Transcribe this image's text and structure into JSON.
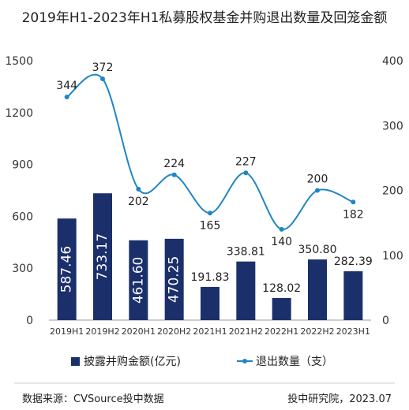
{
  "title": "2019年H1-2023年H1私募股权基金并购退出数量及回笼金额",
  "chart_data": {
    "type": "bar",
    "categories": [
      "2019H1",
      "2019H2",
      "2020H1",
      "2020H2",
      "2021H1",
      "2021H2",
      "2022H1",
      "2022H2",
      "2023H1"
    ],
    "series": [
      {
        "name": "披露并购金额(亿元)",
        "type": "bar",
        "axis": "left",
        "values": [
          587.46,
          733.17,
          461.6,
          470.25,
          191.83,
          338.81,
          128.02,
          350.8,
          282.39
        ],
        "labels": [
          "587.46",
          "733.17",
          "461.60",
          "470.25",
          "191.83",
          "338.81",
          "128.02",
          "350.80",
          "282.39"
        ]
      },
      {
        "name": "退出数量（支）",
        "type": "line",
        "axis": "right",
        "values": [
          344,
          372,
          202,
          224,
          165,
          227,
          140,
          200,
          182
        ],
        "labels": [
          "344",
          "372",
          "202",
          "224",
          "165",
          "227",
          "140",
          "200",
          "182"
        ]
      }
    ],
    "y_left": {
      "min": 0,
      "max": 1500,
      "ticks": [
        "0",
        "300",
        "600",
        "900",
        "1200",
        "1500"
      ]
    },
    "y_right": {
      "min": 0,
      "max": 400,
      "ticks": [
        "0",
        "100",
        "200",
        "300",
        "400"
      ]
    },
    "grid": false,
    "legend_position": "bottom"
  },
  "colors": {
    "bar": "#1b2f6b",
    "line": "#1f86c4",
    "text": "#222222",
    "axis": "#999999"
  },
  "footer": {
    "source": "数据来源：CVSource投中数据",
    "credit": "投中研究院，2023.07"
  }
}
